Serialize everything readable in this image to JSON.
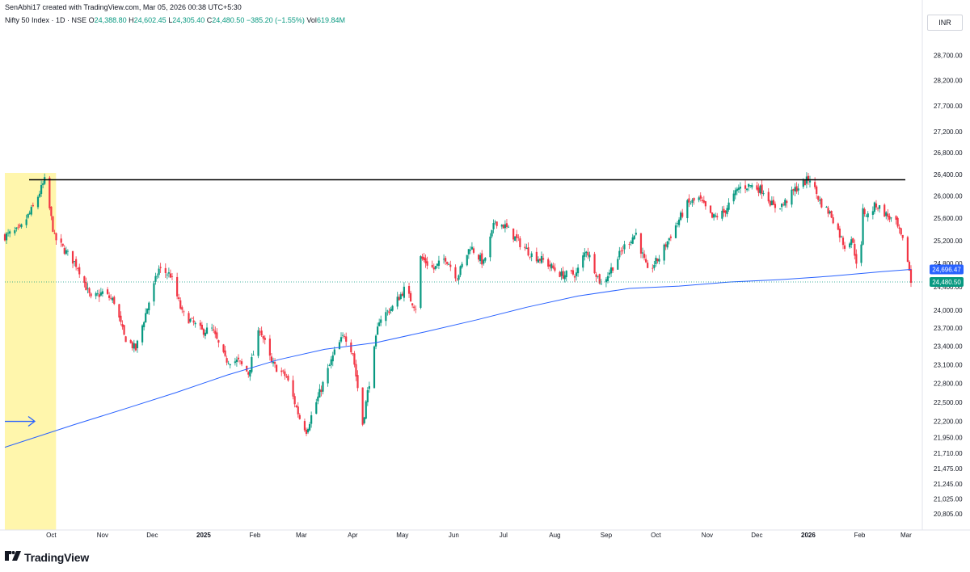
{
  "header": {
    "credit": "SenAbhi17 created with TradingView.com, Mar 05, 2026 00:38 UTC+5:30",
    "symbol": "Nifty 50 Index · 1D · NSE",
    "o_label": "O",
    "o": "24,388.80",
    "h_label": "H",
    "h": "24,602.45",
    "l_label": "L",
    "l": "24,305.40",
    "c_label": "C",
    "c": "24,480.50",
    "change": "−385.20 (−1.55%)",
    "vol_label": "Vol",
    "vol": "619.84M",
    "currency": "INR"
  },
  "footer": {
    "brand": "TradingView",
    "logo_icon": "tradingview-logo-icon"
  },
  "colors": {
    "up": "#089981",
    "down": "#f23645",
    "ma": "#2962ff",
    "resistance": "#000000",
    "highlight": "#fff59d",
    "last_price": "#089981",
    "ma_price": "#2962ff"
  },
  "chart_data": {
    "type": "candlestick",
    "title": "Nifty 50 Index · 1D · NSE",
    "y_axis": {
      "side": "right",
      "scale": "log",
      "ticks": [
        28700,
        28200,
        27700,
        27200,
        26800,
        26400,
        26000,
        25600,
        25200,
        24800,
        24400,
        24000,
        23700,
        23400,
        23100,
        22800,
        22500,
        22200,
        21950,
        21710,
        21475,
        21245,
        21025,
        20805
      ],
      "tick_labels": [
        "28,700.00",
        "28,200.00",
        "27,700.00",
        "27,200.00",
        "26,800.00",
        "26,400.00",
        "26,000.00",
        "25,600.00",
        "25,200.00",
        "24,800.00",
        "24,400.00",
        "24,000.00",
        "23,700.00",
        "23,400.00",
        "23,100.00",
        "22,800.00",
        "22,500.00",
        "22,200.00",
        "21,950.00",
        "21,710.00",
        "21,475.00",
        "21,245.00",
        "21,025.00",
        "20,805.00"
      ],
      "range": [
        20700,
        29000
      ]
    },
    "x_axis": {
      "labels": [
        {
          "text": "Oct",
          "date": "2024-10-01"
        },
        {
          "text": "Nov",
          "date": "2024-11-01"
        },
        {
          "text": "Dec",
          "date": "2024-12-01"
        },
        {
          "text": "2025",
          "date": "2025-01-01",
          "bold": true
        },
        {
          "text": "Feb",
          "date": "2025-02-01"
        },
        {
          "text": "Mar",
          "date": "2025-03-01"
        },
        {
          "text": "Apr",
          "date": "2025-04-01"
        },
        {
          "text": "May",
          "date": "2025-05-01"
        },
        {
          "text": "Jun",
          "date": "2025-06-01"
        },
        {
          "text": "Jul",
          "date": "2025-07-01"
        },
        {
          "text": "Aug",
          "date": "2025-08-01"
        },
        {
          "text": "Sep",
          "date": "2025-09-01"
        },
        {
          "text": "Oct",
          "date": "2025-10-01"
        },
        {
          "text": "Nov",
          "date": "2025-11-01"
        },
        {
          "text": "Dec",
          "date": "2025-12-01"
        },
        {
          "text": "2026",
          "date": "2026-01-01",
          "bold": true
        },
        {
          "text": "Feb",
          "date": "2026-02-01"
        },
        {
          "text": "Mar",
          "date": "2026-03-01"
        }
      ],
      "range": [
        "2024-09-03",
        "2026-03-04"
      ]
    },
    "price_path": [
      [
        "2024-09-03",
        25280
      ],
      [
        "2024-09-12",
        25390
      ],
      [
        "2024-09-20",
        25790
      ],
      [
        "2024-09-27",
        26280
      ],
      [
        "2024-10-03",
        25250
      ],
      [
        "2024-10-11",
        24960
      ],
      [
        "2024-10-17",
        24750
      ],
      [
        "2024-10-25",
        24180
      ],
      [
        "2024-11-01",
        24300
      ],
      [
        "2024-11-08",
        24150
      ],
      [
        "2024-11-14",
        23560
      ],
      [
        "2024-11-21",
        23350
      ],
      [
        "2024-11-29",
        24140
      ],
      [
        "2024-12-05",
        24700
      ],
      [
        "2024-12-12",
        24600
      ],
      [
        "2024-12-19",
        23950
      ],
      [
        "2024-12-31",
        23650
      ],
      [
        "2025-01-06",
        23680
      ],
      [
        "2025-01-14",
        23180
      ],
      [
        "2025-01-22",
        23150
      ],
      [
        "2025-01-28",
        22960
      ],
      [
        "2025-02-04",
        23700
      ],
      [
        "2025-02-11",
        23120
      ],
      [
        "2025-02-20",
        22900
      ],
      [
        "2025-02-28",
        22250
      ],
      [
        "2025-03-04",
        22060
      ],
      [
        "2025-03-10",
        22500
      ],
      [
        "2025-03-21",
        23300
      ],
      [
        "2025-03-27",
        23600
      ],
      [
        "2025-04-01",
        23300
      ],
      [
        "2025-04-07",
        22160
      ],
      [
        "2025-04-11",
        22820
      ],
      [
        "2025-04-17",
        23850
      ],
      [
        "2025-04-25",
        24050
      ],
      [
        "2025-05-02",
        24350
      ],
      [
        "2025-05-09",
        24050
      ],
      [
        "2025-05-12",
        24900
      ],
      [
        "2025-05-20",
        24700
      ],
      [
        "2025-05-27",
        24900
      ],
      [
        "2025-06-03",
        24560
      ],
      [
        "2025-06-11",
        25100
      ],
      [
        "2025-06-19",
        24800
      ],
      [
        "2025-06-26",
        25550
      ],
      [
        "2025-07-02",
        25450
      ],
      [
        "2025-07-11",
        25150
      ],
      [
        "2025-07-18",
        24950
      ],
      [
        "2025-07-25",
        24850
      ],
      [
        "2025-08-05",
        24600
      ],
      [
        "2025-08-14",
        24620
      ],
      [
        "2025-08-20",
        25050
      ],
      [
        "2025-08-29",
        24430
      ],
      [
        "2025-09-05",
        24750
      ],
      [
        "2025-09-12",
        25100
      ],
      [
        "2025-09-19",
        25330
      ],
      [
        "2025-09-26",
        24650
      ],
      [
        "2025-10-03",
        24900
      ],
      [
        "2025-10-10",
        25300
      ],
      [
        "2025-10-20",
        25850
      ],
      [
        "2025-10-27",
        25950
      ],
      [
        "2025-11-04",
        25600
      ],
      [
        "2025-11-11",
        25700
      ],
      [
        "2025-11-20",
        26150
      ],
      [
        "2025-11-27",
        26200
      ],
      [
        "2025-12-05",
        26100
      ],
      [
        "2025-12-11",
        25800
      ],
      [
        "2025-12-17",
        25850
      ],
      [
        "2025-12-24",
        26120
      ],
      [
        "2026-01-02",
        26330
      ],
      [
        "2026-01-08",
        25900
      ],
      [
        "2026-01-15",
        25650
      ],
      [
        "2026-01-23",
        25100
      ],
      [
        "2026-01-27",
        25250
      ],
      [
        "2026-01-30",
        24850
      ],
      [
        "2026-02-02",
        25080
      ],
      [
        "2026-02-03",
        25730
      ],
      [
        "2026-02-06",
        25650
      ],
      [
        "2026-02-11",
        25850
      ],
      [
        "2026-02-17",
        25660
      ],
      [
        "2026-02-23",
        25500
      ],
      [
        "2026-02-27",
        25180
      ],
      [
        "2026-03-02",
        24866
      ],
      [
        "2026-03-04",
        24480
      ]
    ],
    "moving_average": {
      "color": "#2962ff",
      "points": [
        [
          "2024-09-03",
          21800
        ],
        [
          "2024-10-15",
          22150
        ],
        [
          "2024-11-15",
          22400
        ],
        [
          "2024-12-15",
          22650
        ],
        [
          "2025-01-15",
          22930
        ],
        [
          "2025-02-15",
          23180
        ],
        [
          "2025-03-15",
          23350
        ],
        [
          "2025-04-15",
          23460
        ],
        [
          "2025-05-15",
          23640
        ],
        [
          "2025-06-15",
          23840
        ],
        [
          "2025-07-15",
          24050
        ],
        [
          "2025-08-15",
          24240
        ],
        [
          "2025-09-15",
          24370
        ],
        [
          "2025-10-15",
          24410
        ],
        [
          "2025-11-15",
          24480
        ],
        [
          "2025-12-15",
          24520
        ],
        [
          "2026-01-15",
          24580
        ],
        [
          "2026-02-15",
          24660
        ],
        [
          "2026-03-04",
          24696.47
        ]
      ]
    },
    "resistance_line": 26300,
    "highlight_range": [
      "2024-09-03",
      "2024-09-30"
    ],
    "arrow_date": "2024-09-03",
    "arrow_price": 22200,
    "price_labels": [
      {
        "value": 24696.47,
        "text": "24,696.47",
        "color": "#2962ff"
      },
      {
        "value": 24480.5,
        "text": "24,480.50",
        "color": "#089981"
      }
    ],
    "last_close": 24480.5,
    "grid": false,
    "legend": "top-left"
  }
}
